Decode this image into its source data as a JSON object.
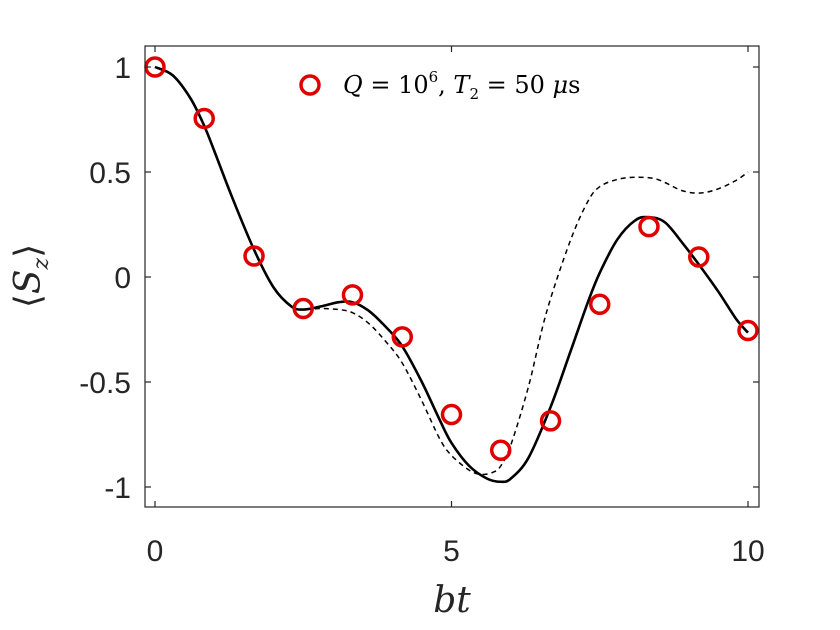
{
  "chart_data": {
    "type": "line",
    "xlabel": "bt",
    "ylabel_base": "S",
    "ylabel_sub": "z",
    "xlim": [
      0,
      10
    ],
    "ylim": [
      -1.1,
      1.1
    ],
    "xticks": [
      0,
      5,
      10
    ],
    "xtick_labels": [
      "0",
      "5",
      "10"
    ],
    "yticks": [
      1,
      0.5,
      0,
      -0.5,
      -1
    ],
    "ytick_labels": [
      "1",
      "0.5",
      "0",
      "-0.5",
      "-1"
    ],
    "grid": false,
    "legend_position": "top",
    "legend": {
      "q_label": "Q",
      "q_base": "10",
      "q_exp": "6",
      "t_label": "T",
      "t_sub": "2",
      "t_value": "50",
      "t_unit_mu": "μ",
      "t_unit_s": "s"
    },
    "series": [
      {
        "name": "Q = 10^6, T2 = 50 μs",
        "kind": "markers",
        "color": "#e00000",
        "x": [
          0,
          0.83,
          1.67,
          2.5,
          3.33,
          4.17,
          5.0,
          5.83,
          6.67,
          7.5,
          8.33,
          9.17,
          10.0
        ],
        "y": [
          1.0,
          0.755,
          0.1,
          -0.15,
          -0.085,
          -0.285,
          -0.655,
          -0.825,
          -0.685,
          -0.13,
          0.24,
          0.095,
          -0.255
        ]
      },
      {
        "kind": "solid",
        "color": "#000000",
        "x": [
          0,
          0.3,
          0.6,
          0.83,
          1.0,
          1.3,
          1.67,
          2.0,
          2.3,
          2.5,
          2.8,
          3.1,
          3.33,
          3.6,
          3.9,
          4.17,
          4.5,
          4.8,
          5.0,
          5.3,
          5.6,
          5.83,
          6.0,
          6.3,
          6.67,
          7.0,
          7.3,
          7.5,
          7.8,
          8.1,
          8.33,
          8.6,
          8.9,
          9.17,
          9.5,
          9.8,
          10.0
        ],
        "y": [
          1.0,
          0.96,
          0.85,
          0.72,
          0.6,
          0.38,
          0.13,
          -0.05,
          -0.14,
          -0.155,
          -0.14,
          -0.12,
          -0.12,
          -0.16,
          -0.24,
          -0.33,
          -0.5,
          -0.68,
          -0.79,
          -0.9,
          -0.96,
          -0.975,
          -0.96,
          -0.86,
          -0.62,
          -0.36,
          -0.12,
          0.02,
          0.18,
          0.27,
          0.285,
          0.26,
          0.16,
          0.06,
          -0.07,
          -0.2,
          -0.265
        ]
      },
      {
        "kind": "dashed",
        "color": "#000000",
        "x": [
          0,
          0.3,
          0.6,
          0.83,
          1.0,
          1.3,
          1.67,
          2.0,
          2.3,
          2.5,
          2.8,
          3.1,
          3.33,
          3.6,
          3.9,
          4.17,
          4.5,
          4.8,
          5.0,
          5.3,
          5.5,
          5.7,
          5.83,
          6.0,
          6.3,
          6.6,
          7.0,
          7.3,
          7.5,
          7.8,
          8.1,
          8.4,
          8.6,
          8.9,
          9.2,
          9.5,
          9.8,
          10.0
        ],
        "y": [
          1.0,
          0.96,
          0.85,
          0.72,
          0.6,
          0.38,
          0.13,
          -0.05,
          -0.14,
          -0.155,
          -0.15,
          -0.155,
          -0.17,
          -0.22,
          -0.31,
          -0.41,
          -0.59,
          -0.77,
          -0.85,
          -0.92,
          -0.94,
          -0.93,
          -0.9,
          -0.8,
          -0.52,
          -0.17,
          0.17,
          0.36,
          0.43,
          0.465,
          0.475,
          0.47,
          0.45,
          0.41,
          0.4,
          0.42,
          0.46,
          0.5
        ]
      }
    ]
  }
}
